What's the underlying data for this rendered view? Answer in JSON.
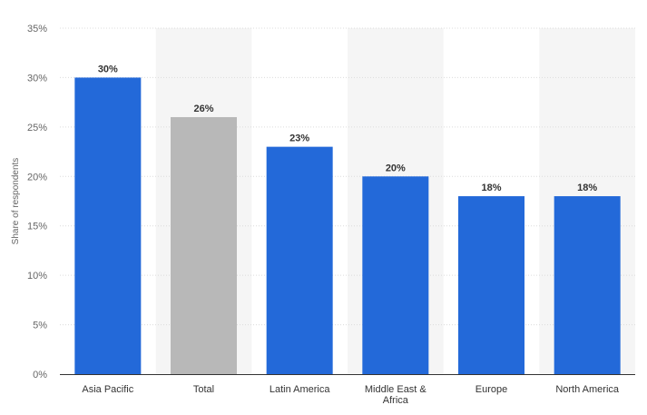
{
  "chart_data": {
    "type": "bar",
    "categories": [
      "Asia Pacific",
      "Total",
      "Latin America",
      "Middle East & Africa",
      "Europe",
      "North America"
    ],
    "category_label_lines": [
      [
        "Asia Pacific"
      ],
      [
        "Total"
      ],
      [
        "Latin America"
      ],
      [
        "Middle East &",
        "Africa"
      ],
      [
        "Europe"
      ],
      [
        "North America"
      ]
    ],
    "values": [
      30,
      26,
      23,
      20,
      18,
      18
    ],
    "value_labels": [
      "30%",
      "26%",
      "23%",
      "20%",
      "18%",
      "18%"
    ],
    "bar_colors": [
      "#2369d9",
      "#b8b8b8",
      "#2369d9",
      "#2369d9",
      "#2369d9",
      "#2369d9"
    ],
    "title": "",
    "xlabel": "",
    "ylabel": "Share of respondents",
    "ylim": [
      0,
      35
    ],
    "yticks": [
      0,
      5,
      10,
      15,
      20,
      25,
      30,
      35
    ],
    "ytick_labels": [
      "0%",
      "5%",
      "10%",
      "15%",
      "20%",
      "25%",
      "30%",
      "35%"
    ],
    "grid": true,
    "legend": "none",
    "colors": {
      "primary_bar": "#2369d9",
      "highlight_bar": "#b8b8b8",
      "alt_band": "#f5f5f5",
      "gridline": "#dcdcdc",
      "axis_line": "#333333"
    }
  }
}
